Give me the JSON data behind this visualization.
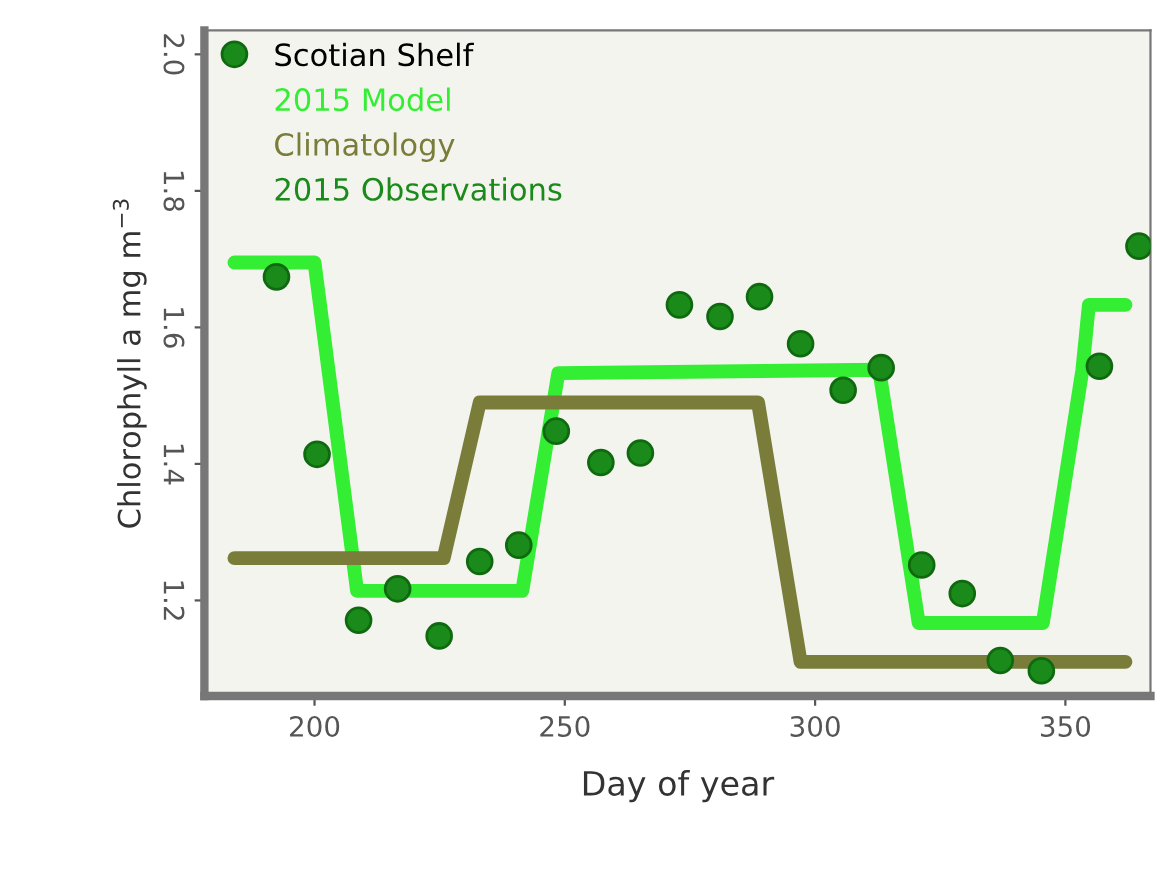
{
  "chart_data": {
    "type": "line",
    "xlabel": "Day of year",
    "ylabel": "Chlorophyll a mg m$^{−3}$",
    "legend_title": "Scotian Shelf",
    "legend": "top left",
    "grid": false,
    "xlim": [
      178,
      367
    ],
    "ylim": [
      1.06,
      2.035
    ],
    "xticks": [
      200,
      250,
      300,
      350
    ],
    "yticks": [
      {
        "value": 1.2,
        "label": "1.2"
      },
      {
        "value": 1.4,
        "label": "1.4"
      },
      {
        "value": 1.6,
        "label": "1.6"
      },
      {
        "value": 1.8,
        "label": "1.8"
      },
      {
        "value": 2.0,
        "label": "2.0"
      }
    ],
    "series": [
      {
        "name": "2015 Model",
        "color": "#33ee33",
        "marker": "none",
        "x": [
          184,
          200,
          208.5,
          241.5,
          248.7,
          312.8,
          320.7,
          345.5,
          353.4,
          354.7,
          362
        ],
        "values": [
          1.695,
          1.695,
          1.214,
          1.214,
          1.533,
          1.538,
          1.167,
          1.167,
          1.538,
          1.633,
          1.633
        ]
      },
      {
        "name": "Climatology",
        "color": "#7a7d3a",
        "marker": "none",
        "x": [
          184,
          225.8,
          233,
          288.6,
          297.1,
          362
        ],
        "values": [
          1.262,
          1.262,
          1.49,
          1.49,
          1.11,
          1.11
        ]
      },
      {
        "name": "2015 Observations",
        "type": "scatter",
        "color": "#1a8a1a",
        "marker": "circle",
        "x": [
          184,
          192.4,
          200.5,
          208.8,
          216.6,
          224.9,
          233,
          240.8,
          248.3,
          257.2,
          265.1,
          272.9,
          281,
          288.9,
          297.1,
          305.6,
          313.2,
          321.3,
          329.4,
          337,
          345.2,
          356.8,
          364.7
        ],
        "values": [
          2.0,
          1.674,
          1.414,
          1.171,
          1.217,
          1.148,
          1.257,
          1.281,
          1.448,
          1.402,
          1.416,
          1.633,
          1.616,
          1.645,
          1.576,
          1.508,
          1.541,
          1.252,
          1.21,
          1.112,
          1.097,
          1.543,
          1.719
        ]
      }
    ]
  }
}
